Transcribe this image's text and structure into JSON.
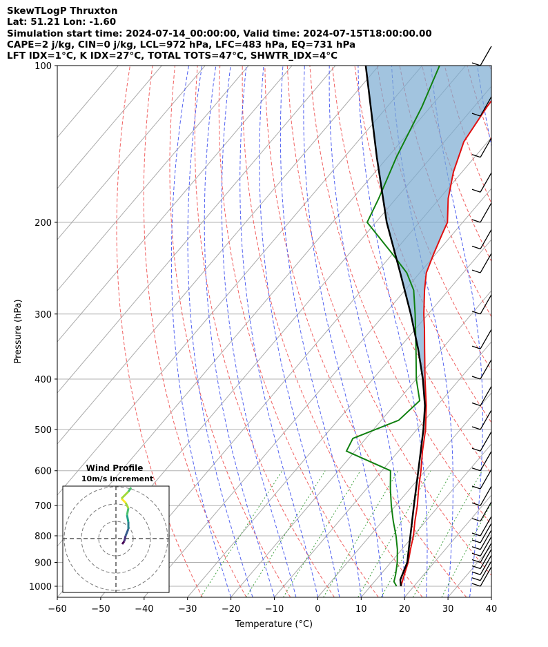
{
  "header": {
    "line1": "SkewTLogP Thruxton",
    "line2": "Lat: 51.21   Lon: -1.60",
    "line3": "Simulation start time: 2024-07-14_00:00:00, Valid time: 2024-07-15T18:00:00.00",
    "line4": "CAPE=2 j/kg, CIN=0 j/kg, LCL=972 hPa, LFC=483 hPa, EQ=731 hPa",
    "line5": "LFT IDX=1°C, K IDX=27°C, TOTAL TOTS=47°C, SHWTR_IDX=4°C"
  },
  "chart_data": {
    "type": "skewt",
    "xlabel": "Temperature (°C)",
    "ylabel": "Pressure (hPa)",
    "xlim": [
      -60,
      40
    ],
    "ylim_hpa": [
      1050,
      100
    ],
    "x_ticks": [
      -60,
      -50,
      -40,
      -30,
      -20,
      -10,
      0,
      10,
      20,
      30,
      40
    ],
    "x_tick_labels": [
      "−60",
      "−50",
      "−40",
      "−30",
      "−20",
      "−10",
      "0",
      "10",
      "20",
      "30",
      "40"
    ],
    "y_ticks": [
      1000,
      900,
      800,
      700,
      600,
      500,
      400,
      300,
      200,
      100
    ],
    "y_tick_labels": [
      "1000",
      "900",
      "800",
      "700",
      "600",
      "500",
      "400",
      "300",
      "200",
      "100"
    ],
    "temperature": [
      [
        1000,
        17
      ],
      [
        950,
        15.5
      ],
      [
        900,
        14
      ],
      [
        850,
        12
      ],
      [
        800,
        10
      ],
      [
        750,
        7.5
      ],
      [
        700,
        5
      ],
      [
        650,
        2
      ],
      [
        600,
        -1
      ],
      [
        550,
        -4.5
      ],
      [
        500,
        -8
      ],
      [
        450,
        -12.5
      ],
      [
        400,
        -18
      ],
      [
        350,
        -24
      ],
      [
        320,
        -28
      ],
      [
        300,
        -31
      ],
      [
        270,
        -35.5
      ],
      [
        250,
        -38.5
      ],
      [
        230,
        -40.5
      ],
      [
        210,
        -42.5
      ],
      [
        200,
        -43.5
      ],
      [
        180,
        -48
      ],
      [
        160,
        -52
      ],
      [
        140,
        -55.5
      ],
      [
        120,
        -57
      ],
      [
        110,
        -57.5
      ],
      [
        100,
        -58
      ]
    ],
    "dewpoint": [
      [
        1000,
        16
      ],
      [
        980,
        14.5
      ],
      [
        950,
        13.5
      ],
      [
        900,
        11.5
      ],
      [
        850,
        9
      ],
      [
        800,
        6
      ],
      [
        750,
        2.5
      ],
      [
        700,
        -1
      ],
      [
        650,
        -4.5
      ],
      [
        600,
        -8
      ],
      [
        550,
        -22
      ],
      [
        520,
        -23
      ],
      [
        480,
        -16
      ],
      [
        440,
        -15
      ],
      [
        400,
        -20
      ],
      [
        350,
        -26
      ],
      [
        300,
        -33
      ],
      [
        270,
        -38
      ],
      [
        250,
        -43
      ],
      [
        230,
        -50
      ],
      [
        200,
        -62
      ],
      [
        180,
        -64
      ],
      [
        150,
        -68
      ],
      [
        120,
        -72
      ],
      [
        100,
        -76
      ]
    ],
    "parcel": [
      [
        1000,
        17
      ],
      [
        972,
        15.6
      ],
      [
        900,
        13.8
      ],
      [
        850,
        11.6
      ],
      [
        800,
        9.3
      ],
      [
        700,
        4.2
      ],
      [
        600,
        -1.6
      ],
      [
        500,
        -8.5
      ],
      [
        483,
        -9.9
      ],
      [
        450,
        -12.8
      ],
      [
        400,
        -18.5
      ],
      [
        350,
        -25.5
      ],
      [
        300,
        -34
      ],
      [
        250,
        -44.5
      ],
      [
        200,
        -57.5
      ],
      [
        150,
        -72.5
      ],
      [
        100,
        -93
      ]
    ],
    "wind_barbs_hpa": [
      1000,
      975,
      950,
      925,
      900,
      875,
      850,
      825,
      800,
      750,
      700,
      650,
      600,
      550,
      500,
      450,
      400,
      350,
      300,
      250,
      225,
      200,
      175,
      150,
      125,
      100
    ],
    "inset": {
      "title": "Wind Profile",
      "subtitle": "10m/s increment"
    }
  }
}
